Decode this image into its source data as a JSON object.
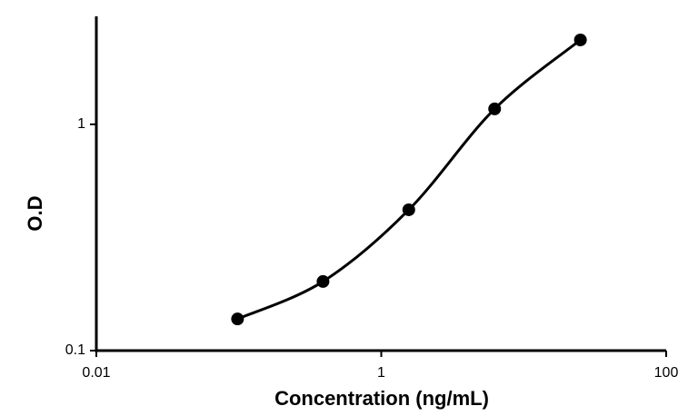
{
  "chart_data": {
    "type": "line",
    "x_label": "Concentration (ng/mL)",
    "y_label": "O.D",
    "x": [
      0.098,
      0.39,
      1.56,
      6.25,
      25
    ],
    "series": [
      {
        "color": "#000000",
        "values": [
          0.138,
          0.202,
          0.419,
          1.17,
          2.36
        ]
      }
    ],
    "xscale": "log",
    "yscale": "log",
    "xlim": [
      0.01,
      100
    ],
    "ylim": [
      0.1,
      3
    ],
    "xticks": [
      0.01,
      1,
      100
    ],
    "yticks": [
      0.1,
      1
    ],
    "grid": false
  }
}
